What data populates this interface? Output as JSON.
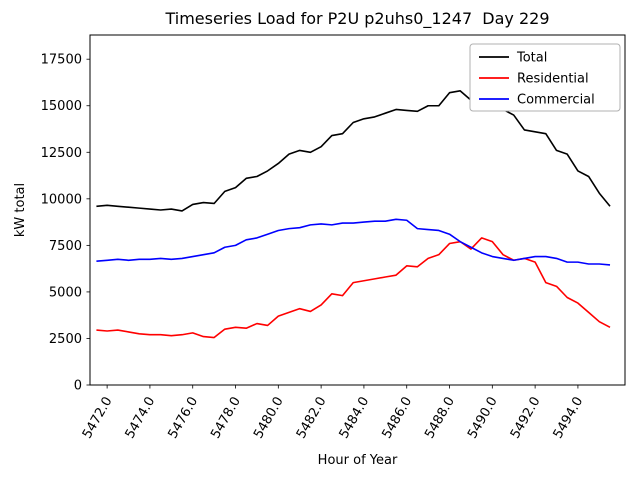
{
  "figure": {
    "background": "#ffffff"
  },
  "chart_data": {
    "type": "line",
    "title": "Timeseries Load for P2U p2uhs0_1247  Day 229",
    "xlabel": "Hour of Year",
    "ylabel": "kW total",
    "xlim": [
      5471.2,
      5496.2
    ],
    "ylim": [
      0,
      18800
    ],
    "grid": false,
    "legend_position": "upper right",
    "xticks": [
      5472,
      5474,
      5476,
      5478,
      5480,
      5482,
      5484,
      5486,
      5488,
      5490,
      5492,
      5494
    ],
    "xtick_labels": [
      "5472.0",
      "5474.0",
      "5476.0",
      "5478.0",
      "5480.0",
      "5482.0",
      "5484.0",
      "5486.0",
      "5488.0",
      "5490.0",
      "5492.0",
      "5494.0"
    ],
    "yticks": [
      0,
      2500,
      5000,
      7500,
      10000,
      12500,
      15000,
      17500
    ],
    "ytick_labels": [
      "0",
      "2500",
      "5000",
      "7500",
      "10000",
      "12500",
      "15000",
      "17500"
    ],
    "x": [
      5471.5,
      5472,
      5472.5,
      5473,
      5473.5,
      5474,
      5474.5,
      5475,
      5475.5,
      5476,
      5476.5,
      5477,
      5477.5,
      5478,
      5478.5,
      5479,
      5479.5,
      5480,
      5480.5,
      5481,
      5481.5,
      5482,
      5482.5,
      5483,
      5483.5,
      5484,
      5484.5,
      5485,
      5485.5,
      5486,
      5486.5,
      5487,
      5487.5,
      5488,
      5488.5,
      5489,
      5489.5,
      5490,
      5490.5,
      5491,
      5491.5,
      5492,
      5492.5,
      5493,
      5493.5,
      5494,
      5494.5,
      5495,
      5495.5
    ],
    "series": [
      {
        "name": "Total",
        "color": "#000000",
        "values": [
          9600,
          9650,
          9600,
          9550,
          9500,
          9450,
          9400,
          9450,
          9350,
          9700,
          9800,
          9750,
          10400,
          10600,
          11100,
          11200,
          11500,
          11900,
          12400,
          12600,
          12500,
          12800,
          13400,
          13500,
          14100,
          14300,
          14400,
          14600,
          14800,
          14750,
          14700,
          15000,
          15000,
          15700,
          15800,
          15300,
          15000,
          15200,
          14800,
          14500,
          13700,
          13600,
          13500,
          12600,
          12400,
          11500,
          11200,
          10300,
          9600
        ]
      },
      {
        "name": "Residential",
        "color": "#ff0000",
        "values": [
          2950,
          2900,
          2950,
          2850,
          2750,
          2700,
          2700,
          2650,
          2700,
          2800,
          2600,
          2550,
          3000,
          3100,
          3050,
          3300,
          3200,
          3700,
          3900,
          4100,
          3950,
          4300,
          4900,
          4800,
          5500,
          5600,
          5700,
          5800,
          5900,
          6400,
          6350,
          6800,
          7000,
          7600,
          7700,
          7300,
          7900,
          7700,
          7000,
          6700,
          6800,
          6600,
          5500,
          5300,
          4700,
          4400,
          3900,
          3400,
          3100
        ]
      },
      {
        "name": "Commercial",
        "color": "#0000ff",
        "values": [
          6650,
          6700,
          6750,
          6700,
          6750,
          6750,
          6800,
          6750,
          6800,
          6900,
          7000,
          7100,
          7400,
          7500,
          7800,
          7900,
          8100,
          8300,
          8400,
          8450,
          8600,
          8650,
          8600,
          8700,
          8700,
          8750,
          8800,
          8800,
          8900,
          8850,
          8400,
          8350,
          8300,
          8100,
          7700,
          7400,
          7100,
          6900,
          6800,
          6700,
          6800,
          6900,
          6900,
          6800,
          6600,
          6600,
          6500,
          6500,
          6450
        ]
      }
    ]
  }
}
